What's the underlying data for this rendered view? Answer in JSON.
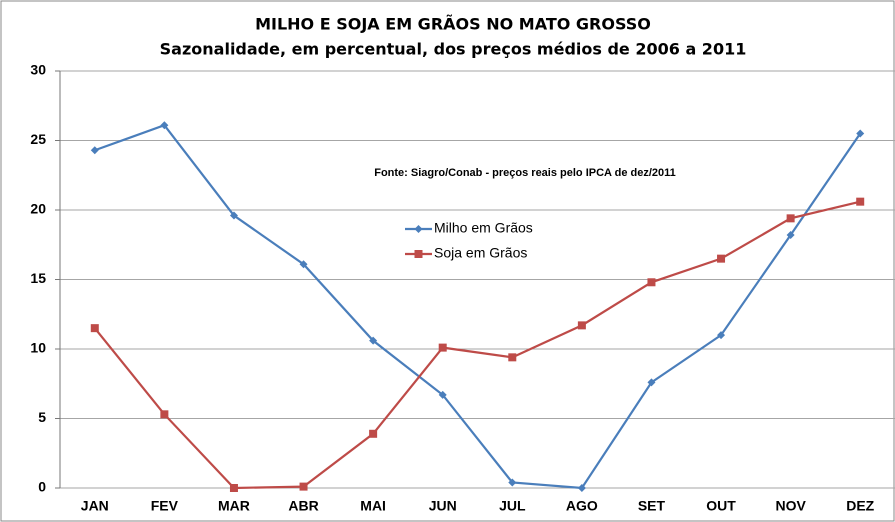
{
  "chart_data": {
    "type": "line",
    "title": "MILHO E SOJA EM GRÃOS NO MATO GROSSO",
    "subtitle": "Sazonalidade, em percentual, dos preços médios de 2006 a 2011",
    "annotation": "Fonte: Siagro/Conab - preços reais pelo IPCA de dez/2011",
    "categories": [
      "JAN",
      "FEV",
      "MAR",
      "ABR",
      "MAI",
      "JUN",
      "JUL",
      "AGO",
      "SET",
      "OUT",
      "NOV",
      "DEZ"
    ],
    "series": [
      {
        "name": "Milho em Grãos",
        "color": "#4a7ebb",
        "values": [
          24.3,
          26.1,
          19.6,
          16.1,
          10.6,
          6.7,
          0.4,
          0,
          7.6,
          11.0,
          18.2,
          25.5
        ]
      },
      {
        "name": "Soja em Grãos",
        "color": "#be4b48",
        "values": [
          11.5,
          5.3,
          0,
          0.1,
          3.9,
          10.1,
          9.4,
          11.7,
          14.8,
          16.5,
          19.4,
          20.6
        ]
      }
    ],
    "ylim": [
      0,
      30
    ],
    "yticks": [
      0,
      5,
      10,
      15,
      20,
      25,
      30
    ],
    "grid": true
  }
}
